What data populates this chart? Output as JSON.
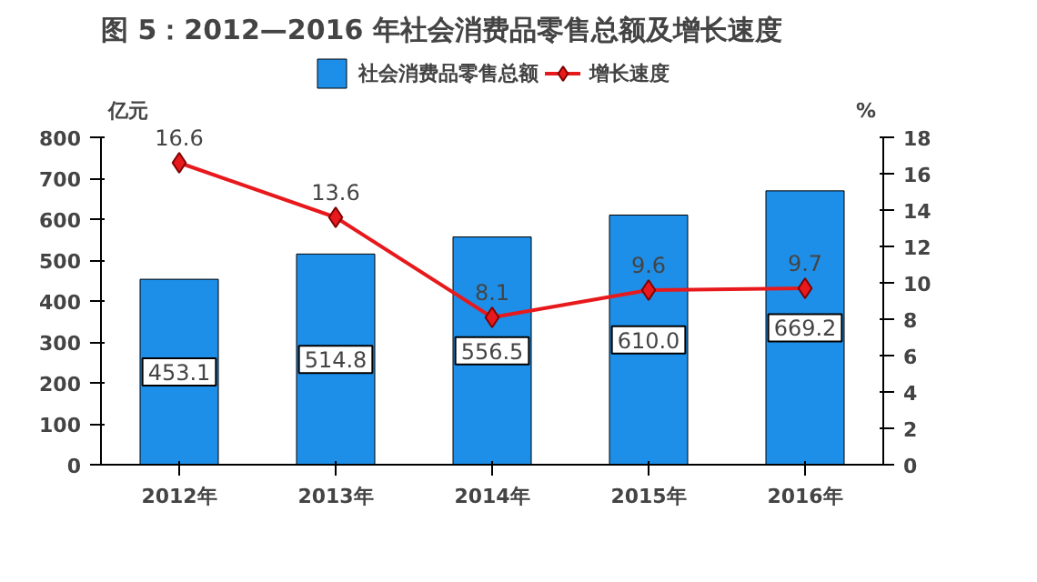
{
  "chart_data": {
    "type": "bar",
    "title": "图 5：2012—2016 年社会消费品零售总额及增长速度",
    "ylabel": "亿元",
    "y2label": "%",
    "categories": [
      "2012年",
      "2013年",
      "2014年",
      "2015年",
      "2016年"
    ],
    "series": [
      {
        "name": "社会消费品零售总额",
        "color": "#1e8fe8",
        "values": [
          453.1,
          514.8,
          556.5,
          610.0,
          669.2
        ],
        "value_labels": [
          "453.1",
          "514.8",
          "556.5",
          "610.0",
          "669.2"
        ]
      },
      {
        "name": "增长速度",
        "type": "line",
        "axis": "y2",
        "color": "#e8191c",
        "marker": "diamond",
        "values": [
          16.6,
          13.6,
          8.1,
          9.6,
          9.7
        ],
        "value_labels": [
          "16.6",
          "13.6",
          "8.1",
          "9.6",
          "9.7"
        ]
      }
    ],
    "ylim": [
      0,
      800
    ],
    "yticks": [
      0,
      100,
      200,
      300,
      400,
      500,
      600,
      700,
      800
    ],
    "y2lim": [
      0,
      18
    ],
    "y2ticks": [
      0,
      2,
      4,
      6,
      8,
      10,
      12,
      14,
      16,
      18
    ],
    "grid": false,
    "legend": "top"
  }
}
